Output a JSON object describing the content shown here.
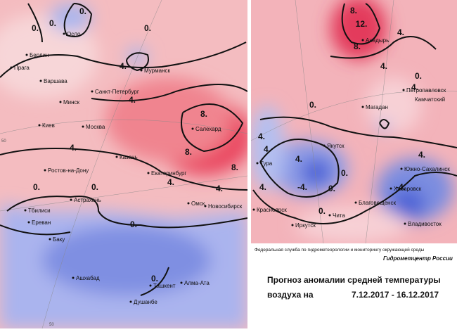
{
  "left_map": {
    "cities": [
      "Осло",
      "Берлин",
      "Прага",
      "Варшава",
      "Мурманск",
      "Санкт-Петербург",
      "Минск",
      "Киев",
      "Москва",
      "Салехард",
      "Казань",
      "Екатеринбург",
      "Ростов-на-Дону",
      "Астрахань",
      "Тбилиси",
      "Ереван",
      "Омск",
      "Новосибирск",
      "Баку",
      "Ашхабад",
      "Ташкент",
      "Алма-Ата",
      "Душанбе"
    ],
    "contour_labels": [
      "0.",
      "0.",
      "0.",
      "0.",
      "4.",
      "4.",
      "4.",
      "4.",
      "4.",
      "8.",
      "8.",
      "8.",
      "0.",
      "0.",
      "0.",
      "0."
    ],
    "grid_labels": [
      "50",
      "50"
    ]
  },
  "right_map": {
    "cities": [
      "Анадырь",
      "Петропавловск",
      "Камчатский",
      "Магадан",
      "Якутск",
      "Тура",
      "Южно-Сахалинск",
      "Хабаровск",
      "Благовещенск",
      "Красноярск",
      "Иркутск",
      "Чита",
      "Владивосток"
    ],
    "contour_labels": [
      "8.",
      "12.",
      "8.",
      "4.",
      "4.",
      "4.",
      "0.",
      "0.",
      "4.",
      "4.",
      "4.",
      "-4.",
      "0.",
      "0.",
      "4.",
      "-4.",
      "0.",
      "4."
    ]
  },
  "footer": {
    "agency": "Федеральная служба по гидрометеорологии и мониторингу окружающей среды",
    "center": "Гидрометцентр России",
    "title": "Прогноз аномалии средней температуры",
    "period_prefix": "воздуха на",
    "period": "7.12.2017 - 16.12.2017"
  }
}
